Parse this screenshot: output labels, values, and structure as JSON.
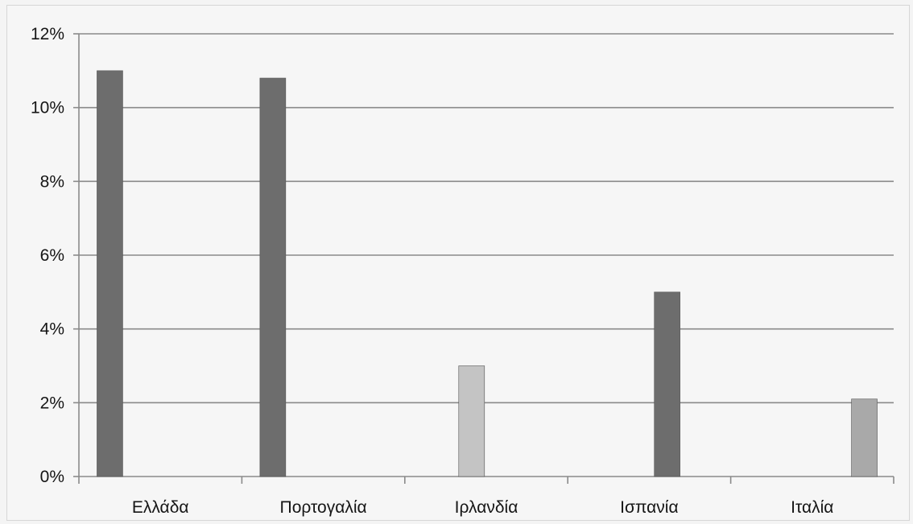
{
  "chart_data": {
    "type": "bar",
    "title": "",
    "xlabel": "",
    "ylabel": "",
    "categories": [
      "Ελλάδα",
      "Πορτογαλία",
      "Ιρλανδία",
      "Ισπανία",
      "Ιταλία"
    ],
    "values": [
      11.0,
      10.8,
      3.0,
      5.0,
      2.1
    ],
    "bar_colors": [
      "#6d6d6d",
      "#6d6d6d",
      "#c4c4c4",
      "#6d6d6d",
      "#a9a9a9"
    ],
    "y_unit": "%",
    "ylim": [
      0,
      12
    ],
    "yticks": [
      "0%",
      "2%",
      "4%",
      "6%",
      "8%",
      "10%",
      "12%"
    ],
    "grid": true,
    "legend": "none"
  }
}
